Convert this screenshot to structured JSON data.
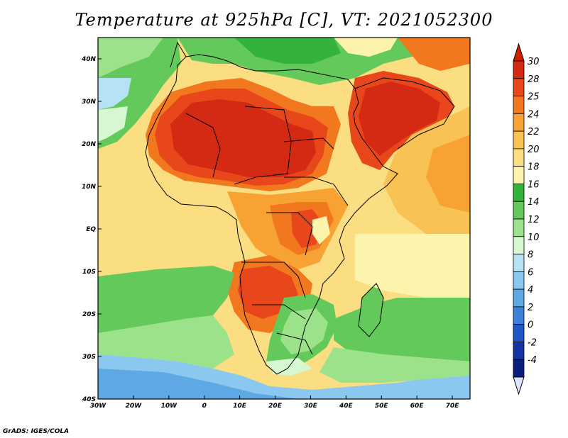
{
  "title": "Temperature at 925hPa [C], VT: 2021052300",
  "footer": "GrADS: IGES/COLA",
  "map": {
    "lon_range": [
      -30,
      75
    ],
    "lat_range": [
      -40,
      45
    ],
    "lon_ticks": [
      -30,
      -20,
      -10,
      0,
      10,
      20,
      30,
      40,
      50,
      60,
      70
    ],
    "lon_tick_labels": [
      "30W",
      "20W",
      "10W",
      "0",
      "10E",
      "20E",
      "30E",
      "40E",
      "50E",
      "60E",
      "70E"
    ],
    "lat_ticks": [
      40,
      30,
      20,
      10,
      0,
      -10,
      -20,
      -30,
      -40
    ],
    "lat_tick_labels": [
      "40N",
      "30N",
      "20N",
      "10N",
      "EQ",
      "10S",
      "20S",
      "30S",
      "40S"
    ]
  },
  "colorbar": {
    "labels": [
      "30",
      "28",
      "25",
      "24",
      "22",
      "20",
      "18",
      "16",
      "14",
      "12",
      "10",
      "8",
      "6",
      "4",
      "2",
      "0",
      "-2",
      "-4"
    ],
    "colors_top_to_bottom": [
      "#d42a14",
      "#e8471c",
      "#f2781f",
      "#f7a233",
      "#f8c255",
      "#fbdd82",
      "#fcf3ad",
      "#33b33a",
      "#62c95a",
      "#9be28a",
      "#d7f7d3",
      "#b5e3f5",
      "#8bc8ef",
      "#5ea8e6",
      "#3b82db",
      "#2057c8",
      "#1535a4",
      "#0a1f7d"
    ],
    "max_arrow_color": "#cc2000",
    "min_arrow_color": "#dde4ff"
  }
}
